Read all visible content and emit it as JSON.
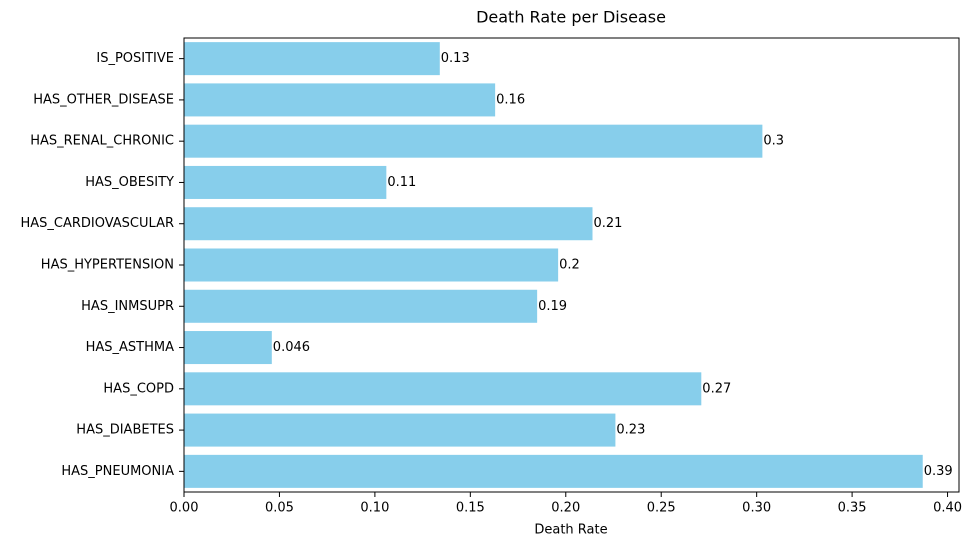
{
  "chart_data": {
    "type": "barh",
    "title": "Death Rate per Disease",
    "x_label": "Death Rate",
    "categories": [
      "IS_POSITIVE",
      "HAS_OTHER_DISEASE",
      "HAS_RENAL_CHRONIC",
      "HAS_OBESITY",
      "HAS_CARDIOVASCULAR",
      "HAS_HYPERTENSION",
      "HAS_INMSUPR",
      "HAS_ASTHMA",
      "HAS_COPD",
      "HAS_DIABETES",
      "HAS_PNEUMONIA"
    ],
    "values": [
      0.134,
      0.163,
      0.303,
      0.106,
      0.214,
      0.196,
      0.185,
      0.046,
      0.271,
      0.226,
      0.387
    ],
    "value_labels": [
      "0.13",
      "0.16",
      "0.3",
      "0.11",
      "0.21",
      "0.2",
      "0.19",
      "0.046",
      "0.27",
      "0.23",
      "0.39"
    ],
    "color": "#87ceeb",
    "xlim": [
      0,
      0.406
    ],
    "xticks": [
      {
        "value": 0,
        "label": "0.00"
      },
      0.05,
      {
        "value": 0.1,
        "label": "0.10"
      },
      0.15,
      {
        "value": 0.2,
        "label": "0.20"
      },
      0.25,
      {
        "value": 0.3,
        "label": "0.30"
      },
      0.35,
      {
        "value": 0.4,
        "label": "0.40"
      }
    ],
    "grid": false
  }
}
